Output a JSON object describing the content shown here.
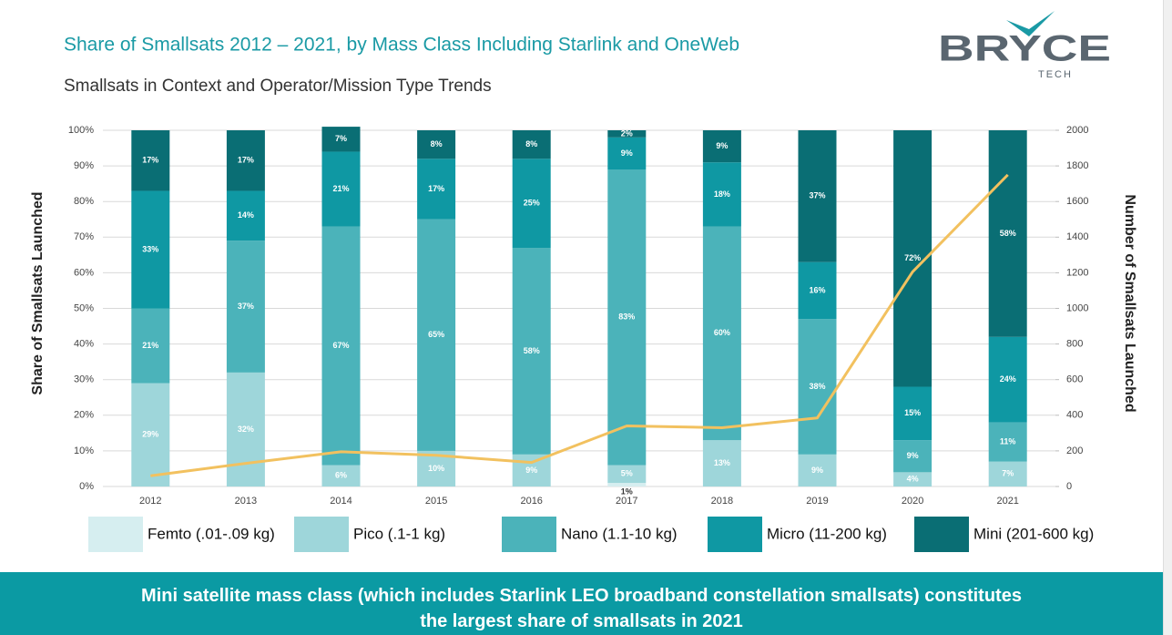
{
  "chart_data": {
    "type": "bar",
    "title": "Share of Smallsats 2012 – 2021, by Mass Class Including Starlink and OneWeb",
    "subtitle": "Smallsats in Context and Operator/Mission Type Trends",
    "logo": {
      "name": "BRYCE",
      "sub": "TECH"
    },
    "y_label": "Share of Smallsats Launched",
    "y2_label": "Number of Smallsats Launched",
    "categories": [
      "2012",
      "2013",
      "2014",
      "2015",
      "2016",
      "2017",
      "2018",
      "2019",
      "2020",
      "2021"
    ],
    "series": [
      {
        "name": "Femto (.01-.09 kg)",
        "color": "#d6eef0",
        "values": [
          0,
          0,
          0,
          0,
          0,
          1,
          0,
          0,
          0,
          0
        ],
        "value_labels": [
          null,
          null,
          null,
          null,
          null,
          "1%",
          null,
          null,
          null,
          null
        ]
      },
      {
        "name": "Pico (.1-1 kg)",
        "color": "#9ed6da",
        "values": [
          29,
          32,
          6,
          10,
          9,
          5,
          13,
          9,
          4,
          7
        ],
        "value_labels": [
          "29%",
          "32%",
          "6%",
          "10%",
          "9%",
          "5%",
          "13%",
          "9%",
          "4%",
          "7%"
        ]
      },
      {
        "name": "Nano (1.1-10 kg)",
        "color": "#4bb3ba",
        "values": [
          21,
          37,
          67,
          65,
          58,
          83,
          60,
          38,
          9,
          11
        ],
        "value_labels": [
          "21%",
          "37%",
          "67%",
          "65%",
          "58%",
          "83%",
          "60%",
          "38%",
          "9%",
          "11%"
        ]
      },
      {
        "name": "Micro (11-200 kg)",
        "color": "#0f98a3",
        "values": [
          33,
          14,
          21,
          17,
          25,
          9,
          18,
          16,
          15,
          24
        ],
        "value_labels": [
          "33%",
          "14%",
          "21%",
          "17%",
          "25%",
          "9%",
          "18%",
          "16%",
          "15%",
          "24%"
        ]
      },
      {
        "name": "Mini (201-600 kg)",
        "color": "#0a6e74",
        "values": [
          17,
          17,
          7,
          8,
          8,
          2,
          9,
          37,
          72,
          58
        ],
        "value_labels": [
          "17%",
          "17%",
          "7%",
          "8%",
          "8%",
          "2%",
          "9%",
          "37%",
          "72%",
          "58%"
        ]
      }
    ],
    "line": {
      "color": "#f2c15f",
      "axis": "y2",
      "values": [
        60,
        130,
        195,
        175,
        135,
        340,
        330,
        385,
        1205,
        1750
      ]
    },
    "ylim": [
      0,
      100
    ],
    "yticks": [
      {
        "value": 0,
        "label": "0%"
      },
      {
        "value": 10,
        "label": "10%"
      },
      {
        "value": 20,
        "label": "20%"
      },
      {
        "value": 30,
        "label": "30%"
      },
      {
        "value": 40,
        "label": "40%"
      },
      {
        "value": 50,
        "label": "50%"
      },
      {
        "value": 60,
        "label": "60%"
      },
      {
        "value": 70,
        "label": "70%"
      },
      {
        "value": 80,
        "label": "80%"
      },
      {
        "value": 90,
        "label": "90%"
      },
      {
        "value": 100,
        "label": "100%"
      }
    ],
    "y2lim": [
      0,
      2000
    ],
    "y2ticks": [
      0,
      200,
      400,
      600,
      800,
      1000,
      1200,
      1400,
      1600,
      1800,
      2000
    ],
    "grid": true,
    "legend": "bottom",
    "banner": "Mini satellite mass class (which includes Starlink LEO broadband constellation smallsats) constitutes the largest share of smallsats in 2021"
  }
}
